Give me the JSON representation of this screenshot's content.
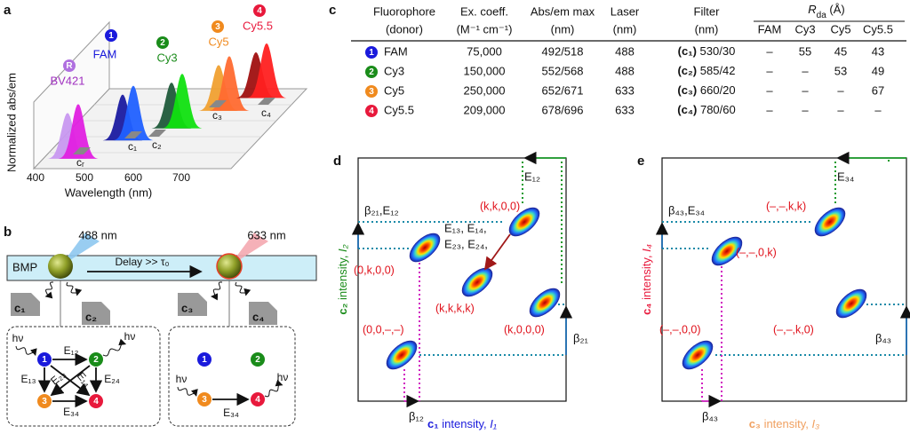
{
  "a": {
    "label": "a",
    "y_axis": "Normalized abs/em",
    "x_axis": "Wavelength (nm)",
    "x_ticks": [
      "400",
      "500",
      "600",
      "700"
    ],
    "dyes": [
      {
        "badge": "R",
        "name": "BV421"
      },
      {
        "badge": "1",
        "name": "FAM"
      },
      {
        "badge": "2",
        "name": "Cy3"
      },
      {
        "badge": "3",
        "name": "Cy5"
      },
      {
        "badge": "4",
        "name": "Cy5.5"
      }
    ],
    "filters": [
      "cᵣ",
      "c₁",
      "c₂",
      "c₃",
      "c₄"
    ]
  },
  "b": {
    "label": "b",
    "lasers": [
      "488 nm",
      "633 nm"
    ],
    "bead": "BMP",
    "delay": "Delay >> τ₀",
    "detectors": [
      "c₁",
      "c₂",
      "c₃",
      "c₄"
    ],
    "left": {
      "nodes": [
        "1",
        "2",
        "3",
        "4"
      ],
      "photons": [
        "hν",
        "hν"
      ],
      "transfers": [
        "E₁₂",
        "E₁₃",
        "E₂₃",
        "E₁₄",
        "E₂₄",
        "E₃₄"
      ]
    },
    "right": {
      "nodes": [
        "1",
        "2",
        "3",
        "4"
      ],
      "photons": [
        "hν",
        "hν"
      ],
      "transfers": [
        "E₃₄"
      ]
    }
  },
  "c": {
    "label": "c",
    "headers": [
      [
        "Fluorophore",
        "(donor)"
      ],
      [
        "Ex. coeff.",
        "(M⁻¹ cm⁻¹)"
      ],
      [
        "Abs/em max",
        "(nm)"
      ],
      [
        "Laser",
        "(nm)"
      ],
      [
        "Filter",
        "(nm)"
      ]
    ],
    "rda": {
      "symbol": "R",
      "sub": "da",
      "unit": " (Å)",
      "columns": [
        "FAM",
        "Cy3",
        "Cy5",
        "Cy5.5"
      ]
    },
    "rows": [
      {
        "badge": "1",
        "name": "FAM",
        "coeff": "75,000",
        "absem": "492/518",
        "laser": "488",
        "filter_channel": "(c₁)",
        "filter": " 530/30",
        "rda": [
          "–",
          "55",
          "45",
          "43"
        ]
      },
      {
        "badge": "2",
        "name": "Cy3",
        "coeff": "150,000",
        "absem": "552/568",
        "laser": "488",
        "filter_channel": "(c₂)",
        "filter": " 585/42",
        "rda": [
          "–",
          "–",
          "53",
          "49"
        ]
      },
      {
        "badge": "3",
        "name": "Cy5",
        "coeff": "250,000",
        "absem": "652/671",
        "laser": "633",
        "filter_channel": "(c₃)",
        "filter": " 660/20",
        "rda": [
          "–",
          "–",
          "–",
          "67"
        ]
      },
      {
        "badge": "4",
        "name": "Cy5.5",
        "coeff": "209,000",
        "absem": "678/696",
        "laser": "633",
        "filter_channel": "(c₄)",
        "filter": " 780/60",
        "rda": [
          "–",
          "–",
          "–",
          "–"
        ]
      }
    ]
  },
  "d": {
    "label": "d",
    "y_axis": [
      "c₂",
      " intensity, ",
      "I₂"
    ],
    "x_axis": [
      "c₁",
      " intensity, ",
      "I₁"
    ],
    "top": "E₁₂",
    "left": "β₂₁,E₁₂",
    "right": "β₂₁",
    "bottom": "β₁₂",
    "transfer": [
      "E₁₃, E₁₄,",
      "E₂₃, E₂₄,"
    ],
    "states": [
      "(0,0,–,–)",
      "(0,k,0,0)",
      "(k,k,0,0)",
      "(k,k,k,k)",
      "(k,0,0,0)"
    ]
  },
  "e": {
    "label": "e",
    "y_axis": [
      "c₄",
      " intensity, ",
      "I₄"
    ],
    "x_axis": [
      "c₃",
      " intensity, ",
      "I₃"
    ],
    "top": "E₃₄",
    "left": "β₄₃,E₃₄",
    "right": "β₄₃",
    "bottom": "β₄₃",
    "states": [
      "(–,–,0,0)",
      "(–,–,0,k)",
      "(–,–,k,k)",
      "(–,–,k,0)"
    ]
  }
}
